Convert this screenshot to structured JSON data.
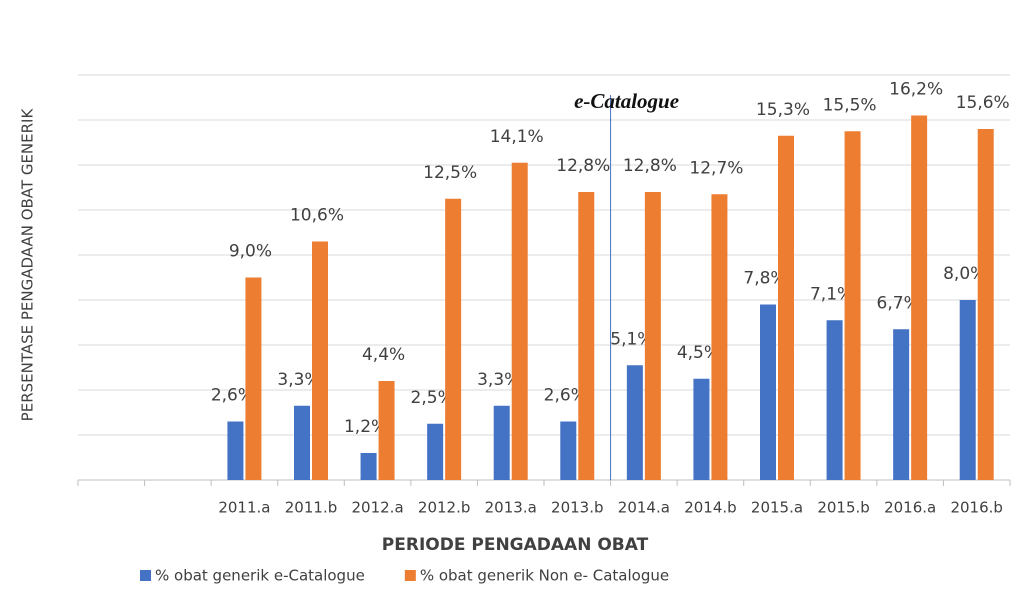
{
  "chart_data": {
    "type": "bar",
    "x_label": "PERIODE PENGADAAN OBAT",
    "y_label": "PERSENTASE PENGADAAN OBAT GENERIK",
    "annotation": "e-Catalogue",
    "categories": [
      null,
      null,
      "2011.a",
      "2011.b",
      "2012.a",
      "2012.b",
      "2013.a",
      "2013.b",
      "2014.a",
      "2014.b",
      "2015.a",
      "2015.b",
      "2016.a",
      "2016.b"
    ],
    "series": [
      {
        "name": "% obat generik e-Catalogue",
        "color": "#4472c4",
        "values": [
          null,
          null,
          2.6,
          3.3,
          1.2,
          2.5,
          3.3,
          2.6,
          5.1,
          4.5,
          7.8,
          7.1,
          6.7,
          8.0
        ],
        "value_labels": [
          null,
          null,
          "2,6%",
          "3,3%",
          "1,2%",
          "2,5%",
          "3,3%",
          "2,6%",
          "5,1%",
          "4,5%",
          "7,8%",
          "7,1%",
          "6,7%",
          "8,0%"
        ]
      },
      {
        "name": "% obat generik  Non e- Catalogue",
        "color": "#ed7d31",
        "values": [
          null,
          null,
          9.0,
          10.6,
          4.4,
          12.5,
          14.1,
          12.8,
          12.8,
          12.7,
          15.3,
          15.5,
          16.2,
          15.6
        ],
        "value_labels": [
          null,
          null,
          "9,0%",
          "10,6%",
          "4,4%",
          "12,5%",
          "14,1%",
          "12,8%",
          "12,8%",
          "12,7%",
          "15,3%",
          "15,5%",
          "16,2%",
          "15,6%"
        ]
      }
    ],
    "ylim": [
      0,
      18
    ],
    "yticks": [
      0,
      2,
      4,
      6,
      8,
      10,
      12,
      14,
      16,
      18
    ],
    "grid": true
  }
}
